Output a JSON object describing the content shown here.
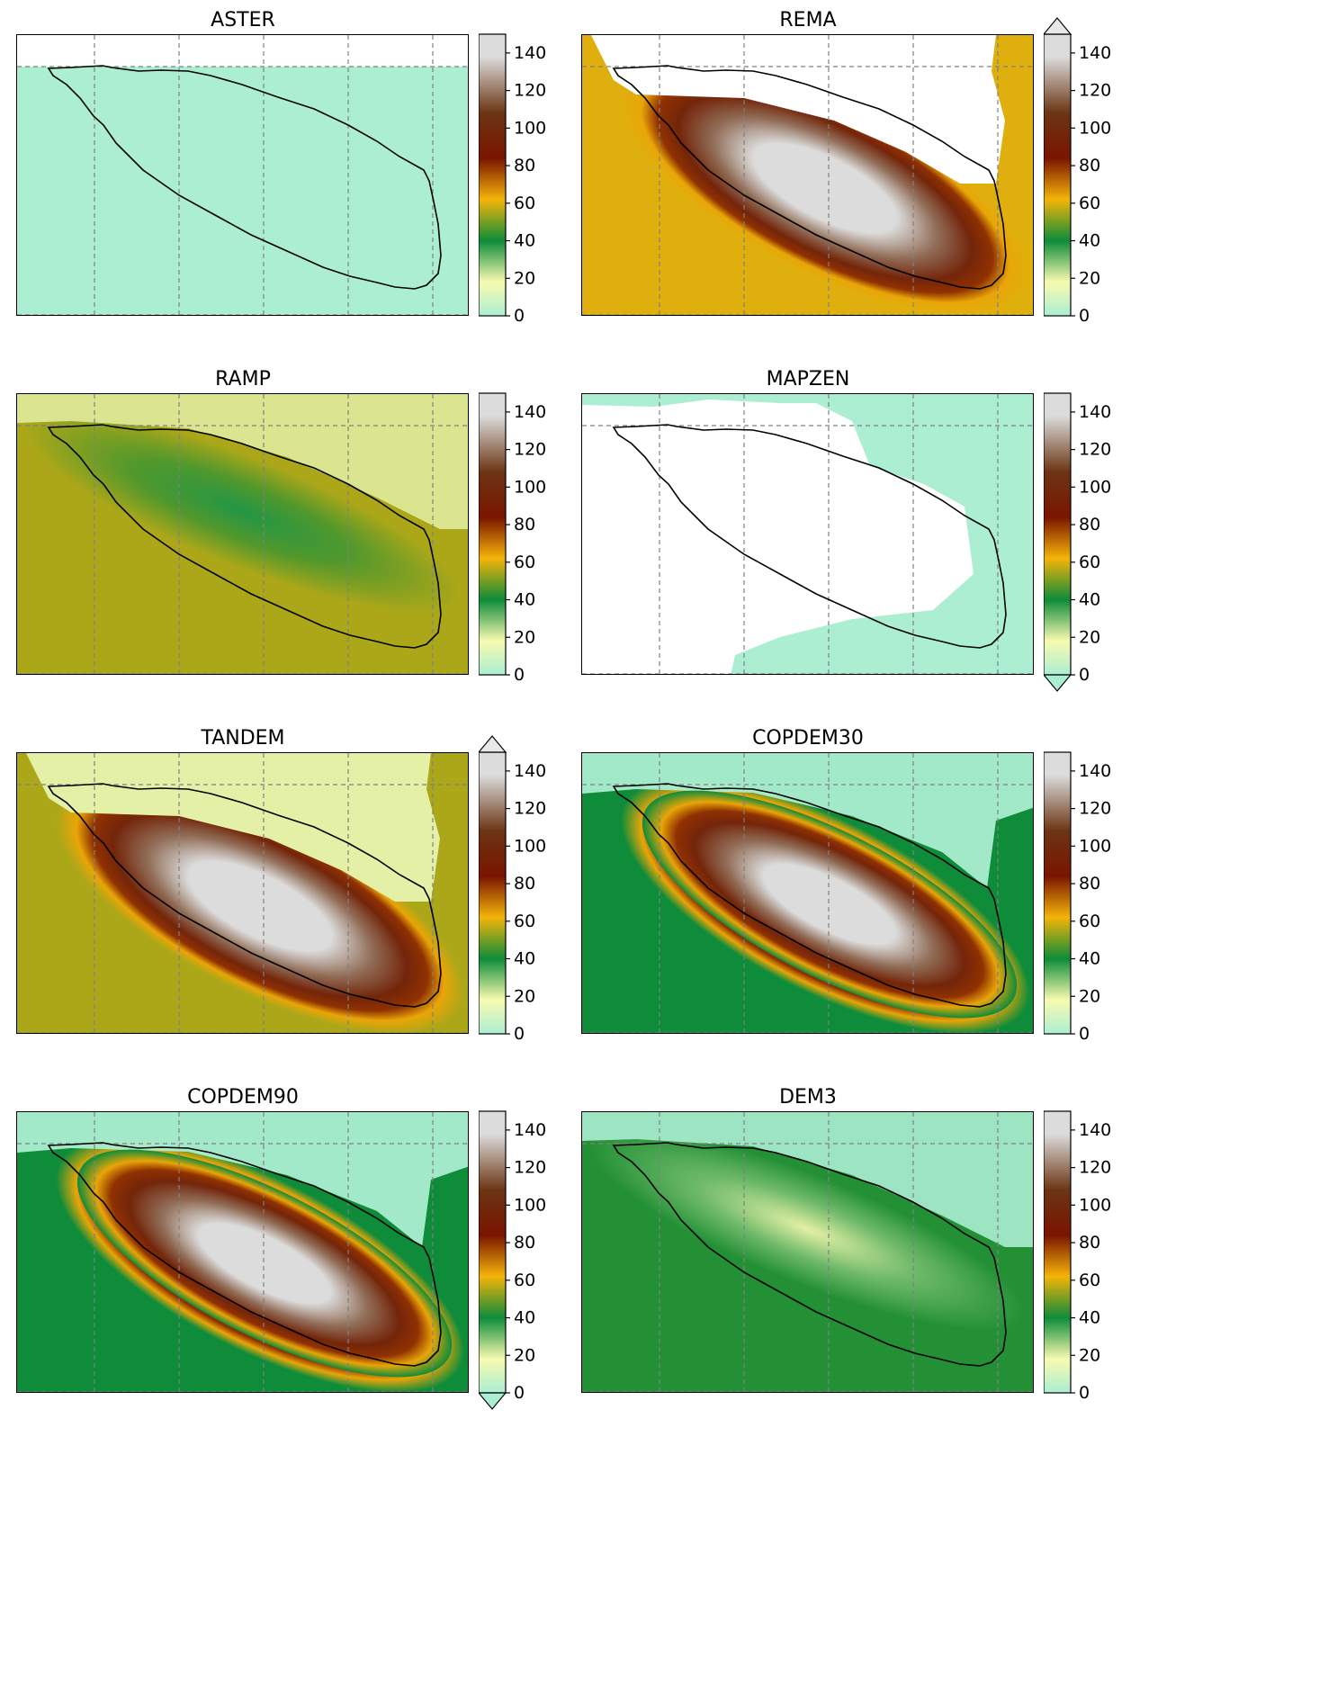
{
  "figure": {
    "colormap": [
      "#abeed2",
      "#f8fab0",
      "#0e8c3a",
      "#f4b409",
      "#7a1400",
      "#6c3514",
      "#dcdcdc",
      "#ffffff"
    ],
    "colorbar_ticks": [
      "0",
      "20",
      "40",
      "60",
      "80",
      "100",
      "120",
      "140"
    ],
    "vmin": 0,
    "vmax": 150,
    "outline_color": "#000000",
    "gridline_color": "#808080"
  },
  "panels": [
    {
      "title": "ASTER",
      "extend": "neither",
      "fill": "uniform",
      "peak_value": 0,
      "base_value": 0,
      "nodata": "top-band"
    },
    {
      "title": "REMA",
      "extend": "max",
      "fill": "ridge",
      "peak_value": 150,
      "base_value": 60,
      "nodata": "north-coast"
    },
    {
      "title": "RAMP",
      "extend": "neither",
      "fill": "valley",
      "peak_value": 38,
      "base_value": 55,
      "nodata": "none"
    },
    {
      "title": "MAPZEN",
      "extend": "min",
      "fill": "mostly-nodata",
      "peak_value": 0,
      "base_value": 0,
      "nodata": "center"
    },
    {
      "title": "TANDEM",
      "extend": "max",
      "fill": "ridge",
      "peak_value": 150,
      "base_value": 55,
      "nodata": "north-coast"
    },
    {
      "title": "COPDEM30",
      "extend": "neither",
      "fill": "ridge",
      "peak_value": 150,
      "base_value": 40,
      "nodata": "none"
    },
    {
      "title": "COPDEM90",
      "extend": "min",
      "fill": "ridge",
      "peak_value": 150,
      "base_value": 40,
      "nodata": "none"
    },
    {
      "title": "DEM3",
      "extend": "neither",
      "fill": "valley",
      "peak_value": 20,
      "base_value": 42,
      "nodata": "none"
    }
  ]
}
